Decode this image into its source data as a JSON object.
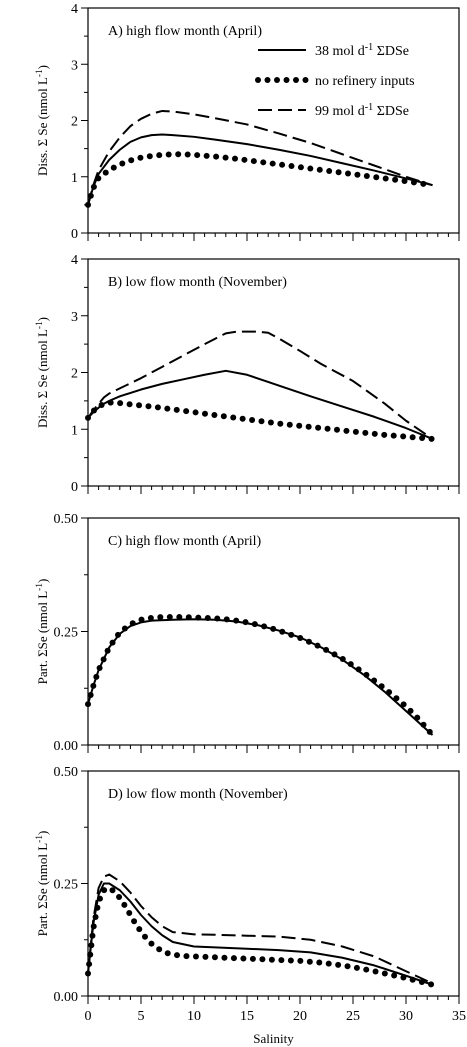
{
  "chart_data": [
    {
      "type": "line",
      "panel_label": "A) high flow month (April)",
      "ylabel": "Diss. Σ Se (nmol L⁻¹)",
      "xlabel": "",
      "xlim": [
        0,
        35
      ],
      "ylim": [
        0,
        4
      ],
      "yticks": [
        "0",
        "1",
        "2",
        "3",
        "4"
      ],
      "xtick_labels_shown": false,
      "legend": {
        "placement": "top-right"
      },
      "series": [
        {
          "name": "38 mol d⁻¹ ΣDSe",
          "style": "solid",
          "x": [
            0,
            0.5,
            1,
            2,
            3,
            4,
            5,
            6,
            7,
            8,
            10,
            12,
            15,
            18,
            21,
            24,
            27,
            30,
            32.5
          ],
          "y": [
            0.5,
            0.82,
            1.05,
            1.3,
            1.48,
            1.62,
            1.7,
            1.74,
            1.75,
            1.74,
            1.71,
            1.66,
            1.58,
            1.48,
            1.37,
            1.24,
            1.11,
            0.97,
            0.85
          ]
        },
        {
          "name": "no refinery inputs",
          "style": "dotted",
          "x": [
            0,
            0.5,
            1,
            2,
            3,
            4,
            5,
            6,
            7,
            8,
            9,
            10,
            12,
            14,
            16,
            18,
            20,
            22,
            24,
            26,
            28,
            30,
            32.5
          ],
          "y": [
            0.5,
            0.8,
            0.98,
            1.12,
            1.22,
            1.29,
            1.34,
            1.37,
            1.39,
            1.4,
            1.4,
            1.39,
            1.36,
            1.32,
            1.27,
            1.22,
            1.17,
            1.12,
            1.07,
            1.02,
            0.97,
            0.92,
            0.85
          ]
        },
        {
          "name": "99 mol d⁻¹ ΣDSe",
          "style": "dashed",
          "x": [
            0,
            0.5,
            1,
            2,
            3,
            4,
            5,
            6,
            7,
            8,
            10,
            12,
            15,
            18,
            21,
            24,
            27,
            30,
            32.5
          ],
          "y": [
            0.5,
            0.85,
            1.12,
            1.45,
            1.7,
            1.9,
            2.03,
            2.12,
            2.17,
            2.16,
            2.11,
            2.04,
            1.93,
            1.77,
            1.6,
            1.4,
            1.2,
            1.0,
            0.85
          ]
        }
      ]
    },
    {
      "type": "line",
      "panel_label": "B) low flow month (November)",
      "ylabel": "Diss. Σ Se (nmol L⁻¹)",
      "xlabel": "",
      "xlim": [
        0,
        35
      ],
      "ylim": [
        0,
        4
      ],
      "yticks": [
        "0",
        "1",
        "2",
        "3",
        "4"
      ],
      "xtick_labels_shown": false,
      "series": [
        {
          "name": "38 mol d⁻¹ ΣDSe",
          "style": "solid",
          "x": [
            0,
            0.5,
            1,
            1.5,
            2,
            3,
            5,
            7,
            9,
            11,
            13,
            15,
            18,
            21,
            24,
            27,
            30,
            32.5
          ],
          "y": [
            1.2,
            1.3,
            1.38,
            1.45,
            1.5,
            1.58,
            1.7,
            1.8,
            1.88,
            1.96,
            2.03,
            1.96,
            1.77,
            1.58,
            1.4,
            1.22,
            1.02,
            0.83
          ]
        },
        {
          "name": "no refinery inputs",
          "style": "dotted",
          "x": [
            0,
            0.5,
            1,
            1.5,
            2,
            3,
            4,
            5,
            6,
            8,
            10,
            12,
            14,
            16,
            18,
            20,
            22,
            24,
            26,
            28,
            30,
            32.5
          ],
          "y": [
            1.2,
            1.32,
            1.4,
            1.45,
            1.47,
            1.46,
            1.44,
            1.42,
            1.4,
            1.35,
            1.3,
            1.25,
            1.2,
            1.15,
            1.1,
            1.06,
            1.02,
            0.98,
            0.94,
            0.9,
            0.87,
            0.83
          ]
        },
        {
          "name": "99 mol d⁻¹ ΣDSe",
          "style": "dashed",
          "x": [
            0,
            0.5,
            1,
            1.5,
            2,
            3,
            5,
            7,
            9,
            11,
            13,
            14,
            16,
            17,
            18,
            20,
            22,
            25,
            28,
            30,
            32.5
          ],
          "y": [
            1.2,
            1.33,
            1.45,
            1.56,
            1.63,
            1.72,
            1.9,
            2.1,
            2.3,
            2.5,
            2.69,
            2.72,
            2.72,
            2.7,
            2.6,
            2.38,
            2.15,
            1.85,
            1.45,
            1.15,
            0.83
          ]
        }
      ]
    },
    {
      "type": "line",
      "panel_label": "C) high flow month (April)",
      "ylabel": "Part. ΣSe (nmol L⁻¹)",
      "xlabel": "",
      "xlim": [
        0,
        35
      ],
      "ylim": [
        0,
        0.5
      ],
      "yticks": [
        "0.00",
        "0.25",
        "0.50"
      ],
      "xtick_labels_shown": false,
      "series": [
        {
          "name": "38 mol d⁻¹ ΣDSe",
          "style": "solid",
          "x": [
            0,
            0.5,
            1,
            2,
            3,
            4,
            5,
            6,
            8,
            10,
            12,
            14,
            16,
            18,
            20,
            22,
            24,
            26,
            28,
            30,
            32.5
          ],
          "y": [
            0.09,
            0.13,
            0.165,
            0.215,
            0.245,
            0.262,
            0.27,
            0.274,
            0.276,
            0.277,
            0.276,
            0.272,
            0.264,
            0.252,
            0.237,
            0.215,
            0.188,
            0.155,
            0.117,
            0.075,
            0.022
          ]
        },
        {
          "name": "no refinery inputs",
          "style": "dotted",
          "x": [
            0,
            0.5,
            1,
            2,
            3,
            4,
            5,
            6,
            7,
            8,
            9,
            10,
            11,
            12,
            13,
            14,
            15,
            16,
            17,
            18,
            19,
            20,
            21,
            22,
            23,
            24,
            25,
            26,
            27,
            28,
            29,
            30,
            31,
            32.5
          ],
          "y": [
            0.09,
            0.13,
            0.165,
            0.215,
            0.248,
            0.266,
            0.276,
            0.28,
            0.282,
            0.282,
            0.282,
            0.281,
            0.28,
            0.279,
            0.277,
            0.274,
            0.27,
            0.265,
            0.259,
            0.252,
            0.244,
            0.236,
            0.226,
            0.215,
            0.203,
            0.19,
            0.175,
            0.159,
            0.142,
            0.124,
            0.105,
            0.085,
            0.062,
            0.022
          ]
        }
      ]
    },
    {
      "type": "line",
      "panel_label": "D) low flow month (November)",
      "ylabel": "Part. ΣSe (nmol L⁻¹)",
      "xlabel": "Salinity",
      "xlim": [
        0,
        35
      ],
      "ylim": [
        0,
        0.5
      ],
      "yticks": [
        "0.00",
        "0.25",
        "0.50"
      ],
      "xticks": [
        "0",
        "5",
        "10",
        "15",
        "20",
        "25",
        "30",
        "35"
      ],
      "xtick_labels_shown": true,
      "series": [
        {
          "name": "38 mol d⁻¹ ΣDSe",
          "style": "solid",
          "x": [
            0,
            0.5,
            1,
            1.5,
            2,
            3,
            4,
            5,
            6,
            7,
            8,
            10,
            12,
            15,
            18,
            21,
            24,
            27,
            30,
            32.5
          ],
          "y": [
            0.05,
            0.16,
            0.225,
            0.25,
            0.25,
            0.235,
            0.21,
            0.18,
            0.155,
            0.135,
            0.12,
            0.11,
            0.108,
            0.105,
            0.102,
            0.097,
            0.085,
            0.068,
            0.045,
            0.025
          ]
        },
        {
          "name": "no refinery inputs",
          "style": "dotted",
          "x": [
            0,
            0.5,
            1,
            1.5,
            2,
            2.5,
            3,
            3.5,
            4,
            4.5,
            5,
            5.5,
            6,
            6.5,
            7,
            7.5,
            8,
            9,
            10,
            11,
            12,
            13,
            14,
            15,
            16,
            17,
            18,
            19,
            20,
            21,
            22,
            23,
            24,
            25,
            26,
            27,
            28,
            29,
            30,
            31,
            32.5
          ],
          "y": [
            0.05,
            0.15,
            0.21,
            0.235,
            0.24,
            0.232,
            0.218,
            0.2,
            0.18,
            0.16,
            0.143,
            0.128,
            0.116,
            0.107,
            0.1,
            0.095,
            0.092,
            0.089,
            0.088,
            0.087,
            0.086,
            0.085,
            0.084,
            0.083,
            0.082,
            0.081,
            0.08,
            0.079,
            0.078,
            0.076,
            0.074,
            0.071,
            0.068,
            0.064,
            0.06,
            0.055,
            0.05,
            0.045,
            0.04,
            0.034,
            0.025
          ]
        },
        {
          "name": "99 mol d⁻¹ ΣDSe",
          "style": "dashed",
          "x": [
            0,
            0.5,
            1,
            1.5,
            2,
            3,
            4,
            5,
            6,
            7,
            8,
            10,
            12,
            15,
            18,
            21,
            24,
            27,
            30,
            32.5
          ],
          "y": [
            0.05,
            0.17,
            0.24,
            0.265,
            0.27,
            0.255,
            0.23,
            0.2,
            0.175,
            0.155,
            0.142,
            0.137,
            0.136,
            0.134,
            0.132,
            0.125,
            0.11,
            0.088,
            0.055,
            0.028
          ]
        }
      ]
    }
  ]
}
